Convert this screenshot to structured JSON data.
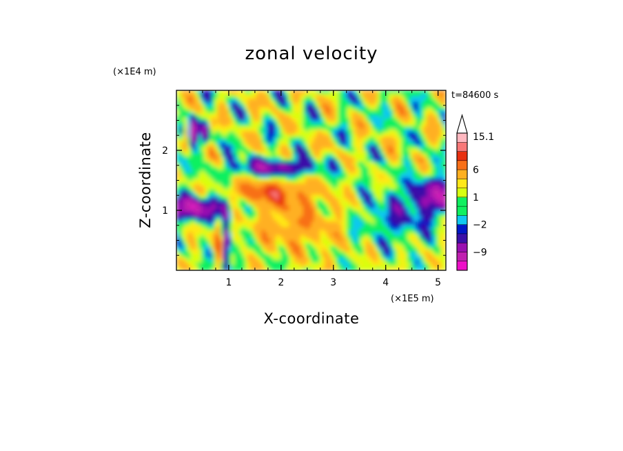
{
  "chart_data": {
    "type": "heatmap",
    "title": "zonal velocity",
    "xlabel": "X-coordinate",
    "ylabel": "Z-coordinate",
    "x_unit": "(×1E5 m)",
    "y_unit": "(×1E4 m)",
    "time_label": "t=84600 s",
    "xlim": [
      0,
      5.15
    ],
    "ylim": [
      0,
      3.0
    ],
    "x_ticks": [
      1,
      2,
      3,
      4,
      5
    ],
    "y_ticks": [
      1,
      2
    ],
    "colorbar": {
      "levels": [
        -15,
        -12,
        -9,
        -6,
        -3,
        -2,
        -1,
        0,
        1,
        2,
        3,
        6,
        9,
        12,
        15.1
      ],
      "labels": [
        {
          "value": 15.1,
          "text": "15.1"
        },
        {
          "value": 6,
          "text": "6"
        },
        {
          "value": 1,
          "text": "1"
        },
        {
          "value": -2,
          "text": "−2"
        },
        {
          "value": -9,
          "text": "−9"
        }
      ],
      "colors": [
        "#ee10c8",
        "#c020b0",
        "#9a10b0",
        "#3a10a8",
        "#0018c8",
        "#10c8f0",
        "#10f060",
        "#10f060",
        "#d8ff10",
        "#ffe818",
        "#ffb020",
        "#f87018",
        "#e83010",
        "#f87878",
        "#ffb8c0"
      ],
      "extend_max_arrow": true
    },
    "features": [
      {
        "name": "low-level easterly jet",
        "x_range": [
          0,
          0.9
        ],
        "z": 1.05,
        "u": -6
      },
      {
        "name": "upper easterly band",
        "x_range": [
          1.2,
          2.6
        ],
        "z": 1.75,
        "u": -6
      },
      {
        "name": "westerly jet core",
        "x_range": [
          1.2,
          2.4
        ],
        "z": 1.3,
        "u": 6
      },
      {
        "name": "easterly region right",
        "x_range": [
          4.6,
          5.15
        ],
        "z": 1.25,
        "u": -6
      },
      {
        "name": "surface easterly cell",
        "x_range": [
          0.85,
          1.05
        ],
        "z": 0.15,
        "u": -9
      }
    ]
  }
}
